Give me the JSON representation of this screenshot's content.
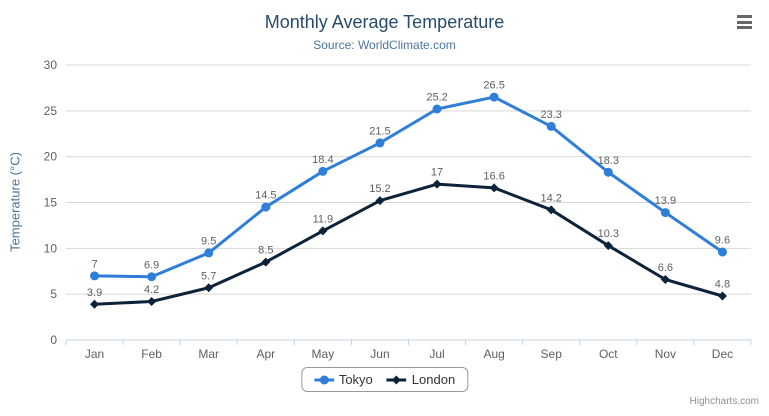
{
  "chart_data": {
    "type": "line",
    "title": "Monthly Average Temperature",
    "subtitle": "Source: WorldClimate.com",
    "ylabel": "Temperature (°C)",
    "xlabel": "",
    "categories": [
      "Jan",
      "Feb",
      "Mar",
      "Apr",
      "May",
      "Jun",
      "Jul",
      "Aug",
      "Sep",
      "Oct",
      "Nov",
      "Dec"
    ],
    "series": [
      {
        "name": "Tokyo",
        "color": "#2f7ed8",
        "marker": "circle",
        "values": [
          7,
          6.9,
          9.5,
          14.5,
          18.4,
          21.5,
          25.2,
          26.5,
          23.3,
          18.3,
          13.9,
          9.6
        ]
      },
      {
        "name": "London",
        "color": "#0d233a",
        "marker": "diamond",
        "values": [
          3.9,
          4.2,
          5.7,
          8.5,
          11.9,
          15.2,
          17,
          16.6,
          14.2,
          10.3,
          6.6,
          4.8
        ]
      }
    ],
    "ylim": [
      0,
      30
    ],
    "ytick_step": 5,
    "grid": true,
    "data_labels": true,
    "legend_position": "bottom-center"
  },
  "colors": {
    "title": "#274b6d",
    "subtitle": "#4d759e",
    "y_axis_title": "#4d759e",
    "axis_labels": "#606060",
    "data_labels": "#606060",
    "gridline": "#d8d8d8",
    "axis_line": "#c0d0e0",
    "legend_text": "#333333",
    "legend_border": "#999999",
    "credits": "#909090",
    "menu_icon": "#666666",
    "background": "#ffffff"
  },
  "menu": {
    "icon": "hamburger-icon"
  },
  "credits": {
    "label": "Highcharts.com"
  }
}
